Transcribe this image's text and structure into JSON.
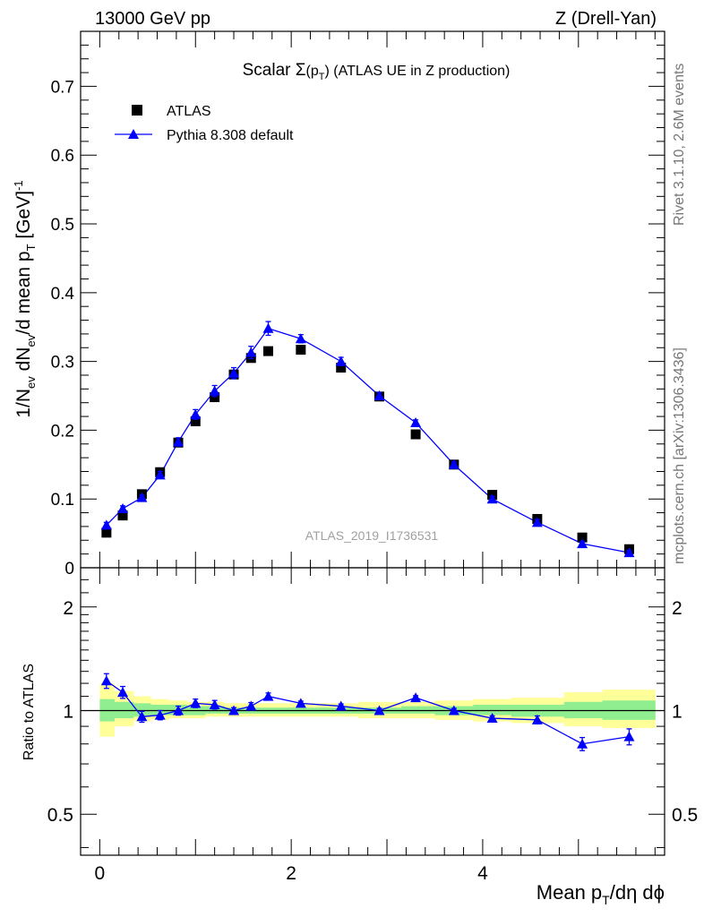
{
  "header": {
    "left": "13000 GeV pp",
    "right": "Z (Drell-Yan)"
  },
  "side_labels": {
    "rivet": "Rivet 3.1.10,  2.6M events",
    "mcplots": "mcplots.cern.ch [arXiv:1306.3436]"
  },
  "chart_data": [
    {
      "type": "scatter",
      "panel": "main",
      "title": "Scalar Σ(p_T) (ATLAS UE in Z production)",
      "xlabel": "Mean p_T/dη dϕ",
      "ylabel": "1/N_ev dN_ev/d mean p_T [GeV]^-1",
      "xlim": [
        -0.2,
        5.9
      ],
      "ylim": [
        0,
        0.78
      ],
      "yticks": [
        0,
        0.1,
        0.2,
        0.3,
        0.4,
        0.5,
        0.6,
        0.7
      ],
      "watermark": "ATLAS_2019_I1736531",
      "legend_position": "top-left",
      "series": [
        {
          "name": "ATLAS",
          "marker": "square",
          "color": "#000000",
          "x": [
            0.07,
            0.24,
            0.44,
            0.63,
            0.82,
            1.0,
            1.2,
            1.4,
            1.58,
            1.76,
            2.1,
            2.52,
            2.92,
            3.3,
            3.7,
            4.1,
            4.57,
            5.04,
            5.53
          ],
          "y": [
            0.051,
            0.076,
            0.107,
            0.139,
            0.182,
            0.213,
            0.248,
            0.281,
            0.305,
            0.315,
            0.317,
            0.291,
            0.249,
            0.194,
            0.15,
            0.106,
            0.071,
            0.044,
            0.027
          ]
        },
        {
          "name": "Pythia 8.308 default",
          "marker": "triangle",
          "color": "#0000ff",
          "x": [
            0.07,
            0.24,
            0.44,
            0.63,
            0.82,
            1.0,
            1.2,
            1.4,
            1.58,
            1.76,
            2.1,
            2.52,
            2.92,
            3.3,
            3.7,
            4.1,
            4.57,
            5.04,
            5.53
          ],
          "y": [
            0.062,
            0.086,
            0.102,
            0.135,
            0.183,
            0.223,
            0.257,
            0.283,
            0.313,
            0.348,
            0.333,
            0.3,
            0.25,
            0.211,
            0.15,
            0.1,
            0.066,
            0.035,
            0.022
          ],
          "yerr": [
            0.004,
            0.004,
            0.004,
            0.005,
            0.006,
            0.007,
            0.008,
            0.008,
            0.009,
            0.01,
            0.006,
            0.006,
            0.005,
            0.004,
            0.004,
            0.004,
            0.004,
            0.003,
            0.003
          ]
        }
      ]
    },
    {
      "type": "scatter",
      "panel": "ratio",
      "xlabel": "Mean p_T/dη dϕ",
      "ylabel": "Ratio to ATLAS",
      "xlim": [
        -0.2,
        5.9
      ],
      "ylim": [
        0.38,
        2.6
      ],
      "y_scale": "log",
      "yticks": [
        0.5,
        1,
        2
      ],
      "ytick_labels": [
        "0.5",
        "1",
        "2"
      ],
      "xticks": [
        0,
        2,
        4
      ],
      "xtick_labels": [
        "0",
        "2",
        "4"
      ],
      "bin_edges": [
        0.0,
        0.15,
        0.35,
        0.53,
        0.72,
        0.91,
        1.1,
        1.3,
        1.49,
        1.67,
        1.85,
        2.35,
        2.7,
        3.15,
        3.5,
        3.9,
        4.3,
        4.85,
        5.25,
        5.8
      ],
      "band_total": [
        [
          0.84,
          1.2
        ],
        [
          0.9,
          1.14
        ],
        [
          0.93,
          1.1
        ],
        [
          0.94,
          1.08
        ],
        [
          0.95,
          1.07
        ],
        [
          0.95,
          1.06
        ],
        [
          0.96,
          1.06
        ],
        [
          0.96,
          1.05
        ],
        [
          0.96,
          1.05
        ],
        [
          0.96,
          1.05
        ],
        [
          0.96,
          1.05
        ],
        [
          0.96,
          1.05
        ],
        [
          0.95,
          1.06
        ],
        [
          0.95,
          1.06
        ],
        [
          0.94,
          1.07
        ],
        [
          0.93,
          1.08
        ],
        [
          0.92,
          1.09
        ],
        [
          0.9,
          1.13
        ],
        [
          0.89,
          1.15
        ]
      ],
      "band_stat": [
        [
          0.93,
          1.08
        ],
        [
          0.95,
          1.06
        ],
        [
          0.96,
          1.05
        ],
        [
          0.97,
          1.04
        ],
        [
          0.97,
          1.04
        ],
        [
          0.97,
          1.03
        ],
        [
          0.98,
          1.03
        ],
        [
          0.98,
          1.02
        ],
        [
          0.98,
          1.02
        ],
        [
          0.98,
          1.02
        ],
        [
          0.98,
          1.02
        ],
        [
          0.98,
          1.02
        ],
        [
          0.98,
          1.02
        ],
        [
          0.98,
          1.03
        ],
        [
          0.97,
          1.03
        ],
        [
          0.97,
          1.04
        ],
        [
          0.96,
          1.04
        ],
        [
          0.95,
          1.06
        ],
        [
          0.94,
          1.07
        ]
      ],
      "series": [
        {
          "name": "Pythia 8.308 default",
          "marker": "triangle",
          "color": "#0000ff",
          "x": [
            0.07,
            0.24,
            0.44,
            0.63,
            0.82,
            1.0,
            1.2,
            1.4,
            1.58,
            1.76,
            2.1,
            2.52,
            2.92,
            3.3,
            3.7,
            4.1,
            4.57,
            5.04,
            5.53
          ],
          "y": [
            1.22,
            1.13,
            0.96,
            0.97,
            1.0,
            1.05,
            1.04,
            1.0,
            1.03,
            1.1,
            1.05,
            1.03,
            1.0,
            1.09,
            1.0,
            0.95,
            0.94,
            0.8,
            0.84
          ],
          "yerr": [
            0.06,
            0.045,
            0.035,
            0.03,
            0.03,
            0.03,
            0.03,
            0.02,
            0.025,
            0.025,
            0.015,
            0.015,
            0.015,
            0.015,
            0.015,
            0.015,
            0.025,
            0.035,
            0.045
          ]
        }
      ]
    }
  ],
  "colors": {
    "band_total": "#ffff99",
    "band_stat": "#90ee90",
    "data": "#000000",
    "mc": "#0000ff"
  }
}
